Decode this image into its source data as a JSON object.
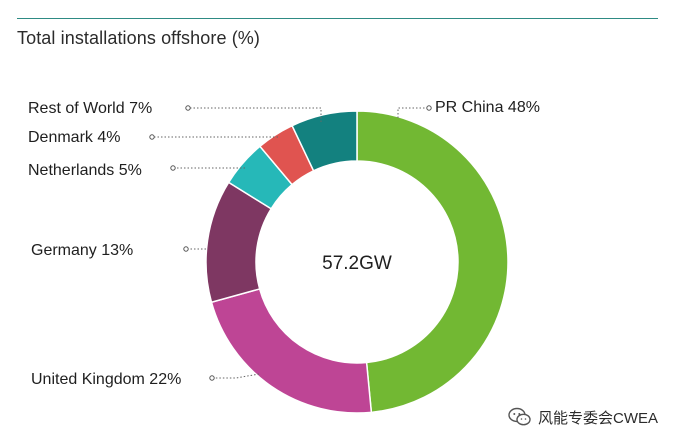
{
  "title": "Total installations offshore (%)",
  "watermark": {
    "text": "风能专委会CWEA",
    "icon": "wechat-icon"
  },
  "chart_data": {
    "type": "pie",
    "style": "donut",
    "title": "Total installations offshore (%)",
    "center_label": "57.2GW",
    "unit": "%",
    "slices": [
      {
        "label": "PR China 48%",
        "value": 48,
        "color": "#72b833"
      },
      {
        "label": "United Kingdom 22%",
        "value": 22,
        "color": "#be4595"
      },
      {
        "label": "Germany 13%",
        "value": 13,
        "color": "#7e3762"
      },
      {
        "label": "Netherlands 5%",
        "value": 5,
        "color": "#26b8b8"
      },
      {
        "label": "Denmark 4%",
        "value": 4,
        "color": "#e05450"
      },
      {
        "label": "Rest of World 7%",
        "value": 7,
        "color": "#13817f"
      }
    ],
    "legend": "none"
  }
}
